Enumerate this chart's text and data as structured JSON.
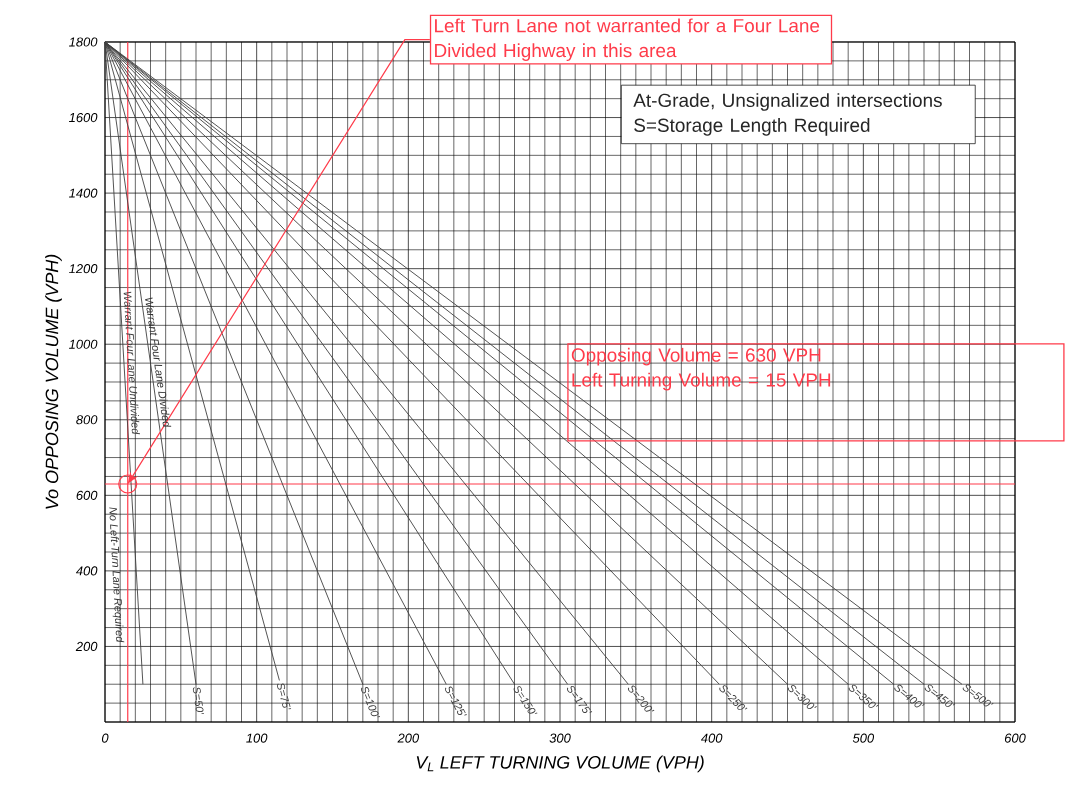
{
  "chart_data": {
    "type": "line",
    "xlabel": "V$_{L}$   LEFT TURNING VOLUME (VPH)",
    "ylabel": "Vo  OPPOSING VOLUME (VPH)",
    "xlim": [
      0,
      600
    ],
    "ylim": [
      0,
      1800
    ],
    "xticks": [
      0,
      100,
      200,
      300,
      400,
      500,
      600
    ],
    "yticks": [
      {
        "value": 0,
        "label": null
      },
      200,
      400,
      600,
      800,
      1000,
      1200,
      1400,
      1600,
      1800
    ],
    "grid": true,
    "marker": "none",
    "line_style": "solid",
    "series": [
      {
        "name": "Warrant Four Lane Undivided",
        "color": "#404040",
        "x": [
          0,
          25
        ],
        "values": [
          1800,
          100
        ]
      },
      {
        "name": "S=50'",
        "color": "#404040",
        "x": [
          0,
          60
        ],
        "values": [
          1800,
          100
        ]
      },
      {
        "name": "S=75'",
        "color": "#404040",
        "x": [
          0,
          115
        ],
        "values": [
          1800,
          110
        ]
      },
      {
        "name": "S=100'",
        "color": "#404040",
        "x": [
          0,
          170
        ],
        "values": [
          1800,
          100
        ]
      },
      {
        "name": "S=125'",
        "color": "#404040",
        "x": [
          0,
          225
        ],
        "values": [
          1800,
          100
        ]
      },
      {
        "name": "S=150'",
        "color": "#404040",
        "x": [
          0,
          270
        ],
        "values": [
          1800,
          100
        ]
      },
      {
        "name": "S=175'",
        "color": "#404040",
        "x": [
          0,
          305
        ],
        "values": [
          1800,
          100
        ]
      },
      {
        "name": "S=200'",
        "color": "#404040",
        "x": [
          0,
          345
        ],
        "values": [
          1800,
          100
        ]
      },
      {
        "name": "S=250'",
        "color": "#404040",
        "x": [
          0,
          405
        ],
        "values": [
          1800,
          100
        ]
      },
      {
        "name": "S=300'",
        "color": "#404040",
        "x": [
          0,
          450
        ],
        "values": [
          1800,
          100
        ]
      },
      {
        "name": "S=350'",
        "color": "#404040",
        "x": [
          0,
          490
        ],
        "values": [
          1800,
          100
        ]
      },
      {
        "name": "S=400'",
        "color": "#404040",
        "x": [
          0,
          520
        ],
        "values": [
          1800,
          100
        ]
      },
      {
        "name": "S=450'",
        "color": "#404040",
        "x": [
          0,
          540
        ],
        "values": [
          1800,
          100
        ]
      },
      {
        "name": "S=500'",
        "color": "#404040",
        "x": [
          0,
          565
        ],
        "values": [
          1800,
          100
        ]
      }
    ],
    "ref_lines": [
      {
        "axis": "x",
        "value": 15,
        "color": "#ff3b4a"
      },
      {
        "axis": "y",
        "value": 630,
        "color": "#ff3b4a"
      }
    ],
    "annotations": [
      {
        "text": "Left Turn Lane not warranted for a Four Lane Divided Highway in this area",
        "x": 15,
        "y": 630
      },
      "Opposing Volume = 630 VPH",
      "Left Turning Volume = 15 VPH",
      "At-Grade, Unsignalized intersections",
      "S=Storage Length Required",
      "No Left-Turn Lane Required",
      "Warrant Four Lane Divided"
    ]
  }
}
